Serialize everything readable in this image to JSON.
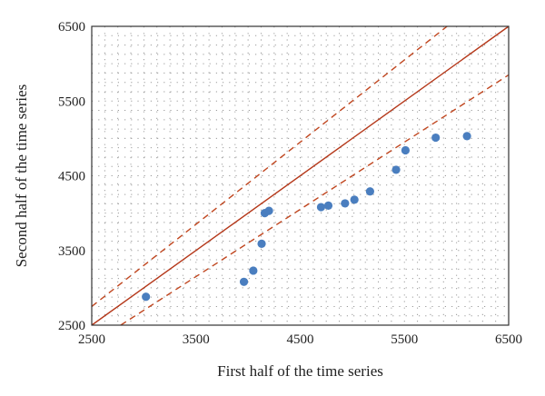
{
  "chart_data": {
    "type": "scatter",
    "title": "",
    "xlabel": "First half of the time series",
    "ylabel": "Second half of the time series",
    "xlim": [
      2500,
      6500
    ],
    "ylim": [
      2500,
      6500
    ],
    "x_ticks": [
      "2500",
      "3500",
      "4500",
      "5500",
      "6500"
    ],
    "y_ticks": [
      "2500",
      "3500",
      "4500",
      "5500",
      "6500"
    ],
    "grid": true,
    "legend": "none",
    "series": [
      {
        "points": [
          [
            3020,
            2880
          ],
          [
            3960,
            3080
          ],
          [
            4050,
            3230
          ],
          [
            4130,
            3590
          ],
          [
            4160,
            4000
          ],
          [
            4200,
            4030
          ],
          [
            4700,
            4080
          ],
          [
            4770,
            4100
          ],
          [
            4930,
            4130
          ],
          [
            5020,
            4180
          ],
          [
            5170,
            4290
          ],
          [
            5420,
            4580
          ],
          [
            5510,
            4840
          ],
          [
            5800,
            5010
          ],
          [
            6100,
            5030
          ]
        ],
        "color": "#4a7ebf"
      }
    ],
    "reference_lines": [
      {
        "slope": 1.0,
        "intercept": 0,
        "style": "solid",
        "color": "#b5381a"
      },
      {
        "slope": 1.1,
        "intercept": 0,
        "style": "dashed",
        "color": "#c0461f"
      },
      {
        "slope": 0.9,
        "intercept": 0,
        "style": "dashed",
        "color": "#c0461f"
      }
    ]
  }
}
